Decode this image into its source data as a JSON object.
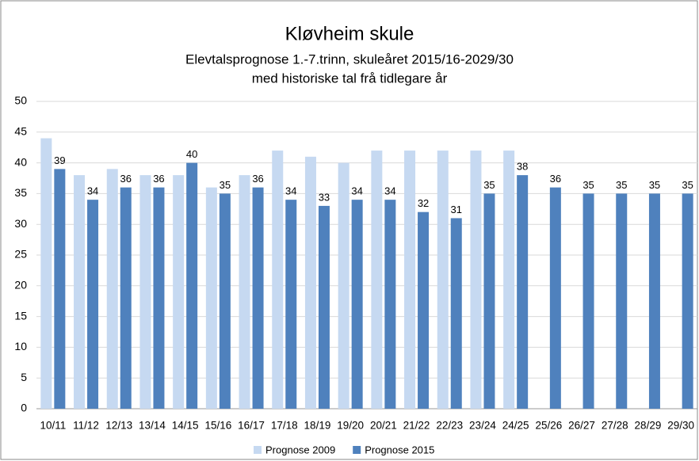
{
  "chart_data": {
    "type": "bar",
    "title": "Kløvheim skule",
    "subtitle": [
      "Elevtalsprognose 1.-7.trinn, skuleåret 2015/16-2029/30",
      "med historiske tal frå tidlegare år"
    ],
    "categories": [
      "10/11",
      "11/12",
      "12/13",
      "13/14",
      "14/15",
      "15/16",
      "16/17",
      "17/18",
      "18/19",
      "19/20",
      "20/21",
      "21/22",
      "22/23",
      "23/24",
      "24/25",
      "25/26",
      "26/27",
      "27/28",
      "28/29",
      "29/30"
    ],
    "series": [
      {
        "name": "Prognose 2009",
        "color": "#c6d9f1",
        "data_labels": false,
        "values": [
          44,
          38,
          39,
          38,
          38,
          36,
          38,
          42,
          41,
          40,
          42,
          42,
          42,
          42,
          42,
          null,
          null,
          null,
          null,
          null
        ]
      },
      {
        "name": "Prognose 2015",
        "color": "#4f81bd",
        "data_labels": true,
        "values": [
          39,
          34,
          36,
          36,
          40,
          35,
          36,
          34,
          33,
          34,
          34,
          32,
          31,
          35,
          38,
          36,
          35,
          35,
          35,
          35
        ]
      }
    ],
    "ylim": [
      0,
      50
    ],
    "yticks": [
      0,
      5,
      10,
      15,
      20,
      25,
      30,
      35,
      40,
      45,
      50
    ],
    "grid": true,
    "legend": "bottom"
  }
}
